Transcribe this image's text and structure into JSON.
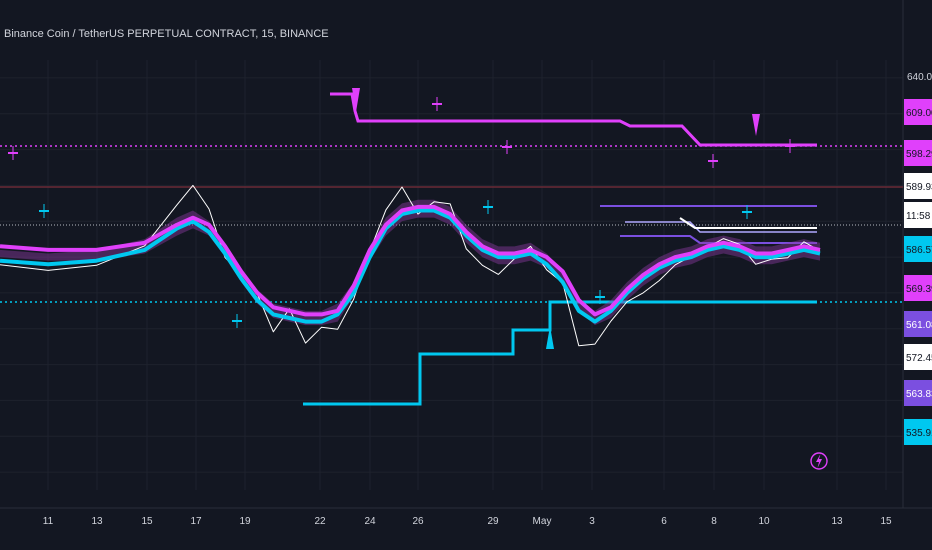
{
  "title": "Binance Coin / TetherUS PERPETUAL CONTRACT, 15, BINANCE",
  "colors": {
    "background": "#131722",
    "grid": "#1e222d",
    "magenta": "#e040fb",
    "cyan": "#00c8f0",
    "purple": "#7b4fe0",
    "white": "#ffffff",
    "darkred": "#6b2a36"
  },
  "icons": {
    "alert": "lightning-bolt-icon"
  },
  "chart_data": {
    "type": "line",
    "x_ticks": [
      "11",
      "13",
      "15",
      "17",
      "19",
      "22",
      "24",
      "26",
      "29",
      "May",
      "3",
      "6",
      "8",
      "10",
      "13",
      "15"
    ],
    "ylim": [
      525,
      645
    ],
    "y_top_label": "640.00",
    "price_tags": [
      {
        "label": "609.00",
        "value": 609.0,
        "bg": "#e040fb",
        "fg": "#131722"
      },
      {
        "label": "598.29",
        "value": 598.29,
        "bg": "#e040fb",
        "fg": "#131722"
      },
      {
        "label": "589.93",
        "value": 589.93,
        "bg": "#ffffff",
        "fg": "#131722"
      },
      {
        "label": "11:58",
        "value": 585.5,
        "bg": "#ffffff",
        "fg": "#131722"
      },
      {
        "label": "586.57",
        "value": 582.0,
        "bg": "#00c8f0",
        "fg": "#131722"
      },
      {
        "label": "569.39",
        "value": 569.39,
        "bg": "#e040fb",
        "fg": "#131722"
      },
      {
        "label": "561.08",
        "value": 561.08,
        "bg": "#7b4fe0",
        "fg": "#ffffff"
      },
      {
        "label": "572.45",
        "value": 556.0,
        "bg": "#ffffff",
        "fg": "#131722"
      },
      {
        "label": "563.83",
        "value": 549.5,
        "bg": "#7b4fe0",
        "fg": "#ffffff"
      },
      {
        "label": "535.91",
        "value": 541.5,
        "bg": "#00c8f0",
        "fg": "#131722"
      }
    ],
    "series": [
      {
        "key": "price",
        "color": "#ffffff",
        "points": [
          [
            0,
            587
          ],
          [
            3,
            586
          ],
          [
            6,
            588
          ],
          [
            9,
            594
          ],
          [
            11,
            604
          ],
          [
            12,
            610
          ],
          [
            13,
            604
          ],
          [
            14,
            589
          ],
          [
            15,
            585
          ],
          [
            16,
            580
          ],
          [
            17,
            570
          ],
          [
            18,
            575
          ],
          [
            19,
            566
          ],
          [
            20,
            571
          ],
          [
            21,
            569
          ],
          [
            22,
            578
          ],
          [
            23,
            592
          ],
          [
            24,
            604
          ],
          [
            25,
            609
          ],
          [
            26,
            602
          ],
          [
            27,
            606
          ],
          [
            28,
            604
          ],
          [
            29,
            592
          ],
          [
            30,
            588
          ],
          [
            31,
            586
          ],
          [
            32,
            589
          ],
          [
            33,
            593
          ],
          [
            34,
            587
          ],
          [
            35,
            582
          ],
          [
            36,
            565
          ],
          [
            37,
            566
          ],
          [
            38,
            573
          ],
          [
            39,
            577
          ],
          [
            40,
            580
          ],
          [
            41,
            584
          ],
          [
            42,
            587
          ],
          [
            43,
            590
          ],
          [
            44,
            593
          ],
          [
            45,
            596
          ],
          [
            46,
            593
          ],
          [
            47,
            588
          ],
          [
            48,
            590
          ],
          [
            49,
            589
          ],
          [
            50,
            594
          ],
          [
            51,
            592
          ]
        ]
      },
      {
        "key": "fast-ma",
        "color": "#00c8f0",
        "points": [
          [
            0,
            589
          ],
          [
            3,
            588
          ],
          [
            6,
            589
          ],
          [
            9,
            592
          ],
          [
            11,
            598
          ],
          [
            12,
            600
          ],
          [
            13,
            597
          ],
          [
            14,
            591
          ],
          [
            15,
            584
          ],
          [
            16,
            578
          ],
          [
            17,
            574
          ],
          [
            18,
            573
          ],
          [
            19,
            572
          ],
          [
            20,
            572
          ],
          [
            21,
            574
          ],
          [
            22,
            580
          ],
          [
            23,
            590
          ],
          [
            24,
            598
          ],
          [
            25,
            602
          ],
          [
            26,
            603
          ],
          [
            27,
            603
          ],
          [
            28,
            601
          ],
          [
            29,
            596
          ],
          [
            30,
            592
          ],
          [
            31,
            590
          ],
          [
            32,
            590
          ],
          [
            33,
            591
          ],
          [
            34,
            588
          ],
          [
            35,
            583
          ],
          [
            36,
            575
          ],
          [
            37,
            572
          ],
          [
            38,
            575
          ],
          [
            39,
            580
          ],
          [
            40,
            584
          ],
          [
            41,
            587
          ],
          [
            42,
            589
          ],
          [
            43,
            590
          ],
          [
            44,
            592
          ],
          [
            45,
            593
          ],
          [
            46,
            592
          ],
          [
            47,
            590
          ],
          [
            48,
            590
          ],
          [
            49,
            591
          ],
          [
            50,
            592
          ],
          [
            51,
            591
          ]
        ]
      },
      {
        "key": "slow-ma",
        "color": "#e040fb",
        "points": [
          [
            0,
            593
          ],
          [
            3,
            592
          ],
          [
            6,
            592
          ],
          [
            9,
            594
          ],
          [
            11,
            599
          ],
          [
            12,
            601
          ],
          [
            13,
            599
          ],
          [
            14,
            593
          ],
          [
            15,
            586
          ],
          [
            16,
            580
          ],
          [
            17,
            576
          ],
          [
            18,
            575
          ],
          [
            19,
            574
          ],
          [
            20,
            574
          ],
          [
            21,
            575
          ],
          [
            22,
            582
          ],
          [
            23,
            592
          ],
          [
            24,
            599
          ],
          [
            25,
            603
          ],
          [
            26,
            604
          ],
          [
            27,
            604
          ],
          [
            28,
            602
          ],
          [
            29,
            597
          ],
          [
            30,
            593
          ],
          [
            31,
            591
          ],
          [
            32,
            591
          ],
          [
            33,
            592
          ],
          [
            34,
            590
          ],
          [
            35,
            586
          ],
          [
            36,
            578
          ],
          [
            37,
            574
          ],
          [
            38,
            576
          ],
          [
            39,
            581
          ],
          [
            40,
            585
          ],
          [
            41,
            588
          ],
          [
            42,
            590
          ],
          [
            43,
            591
          ],
          [
            44,
            593
          ],
          [
            45,
            594
          ],
          [
            46,
            593
          ],
          [
            47,
            591
          ],
          [
            48,
            591
          ],
          [
            49,
            592
          ],
          [
            50,
            593
          ],
          [
            51,
            592
          ]
        ]
      }
    ]
  }
}
